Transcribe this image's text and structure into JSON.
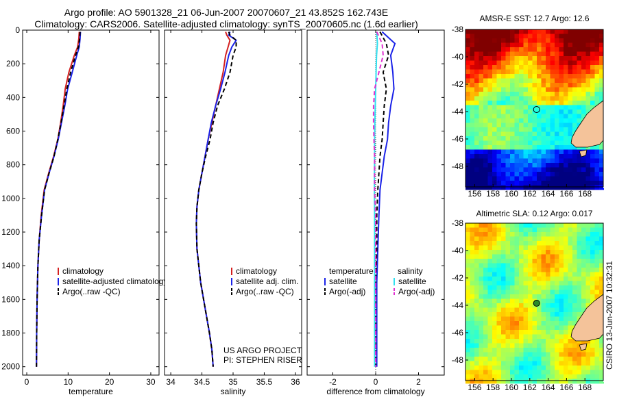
{
  "header": {
    "title1": "Argo profile: AO 5901328_21 06-Jun-2007 20070607_21 43.852S 162.743E",
    "title2": "Climatology: CARS2006. Satellite-adjusted climatology: synTS_20070605.nc (1.6d earlier)"
  },
  "side_label": "CSIRO 13-Jun-2007 10:32:31",
  "colors": {
    "climatology": "#d42020",
    "satellite": "#1a22e8",
    "argo": "#000000",
    "sal_sat": "#30e0f0",
    "sal_argo": "#e030d0"
  },
  "chart_data": [
    {
      "type": "line",
      "id": "temperature",
      "xlabel": "temperature",
      "ylabel": "",
      "xlim": [
        -1,
        32
      ],
      "ylim": [
        0,
        2050
      ],
      "y_reversed": true,
      "xticks": [
        0,
        10,
        20,
        30
      ],
      "yticks": [
        0,
        200,
        400,
        600,
        800,
        1000,
        1200,
        1400,
        1600,
        1800,
        2000
      ],
      "legend": [
        "climatology",
        "satellite-adjusted climatology",
        "Argo(..raw -QC)"
      ],
      "series": [
        {
          "name": "climatology",
          "color": "#d42020",
          "dash": false,
          "x": [
            12.7,
            12.6,
            12.3,
            11.5,
            10.2,
            9.3,
            8.8,
            8.2,
            7.5,
            6.5,
            5.3,
            4.2,
            3.5,
            3.0,
            2.7,
            2.5,
            2.4,
            2.35
          ],
          "y": [
            10,
            50,
            100,
            150,
            250,
            350,
            450,
            550,
            650,
            750,
            850,
            950,
            1100,
            1250,
            1400,
            1600,
            1800,
            2000
          ]
        },
        {
          "name": "satellite-adjusted climatology",
          "color": "#1a22e8",
          "dash": false,
          "x": [
            13.0,
            12.9,
            12.7,
            12.1,
            11.0,
            9.9,
            9.2,
            8.4,
            7.6,
            6.6,
            5.4,
            4.3,
            3.6,
            3.0,
            2.7,
            2.5,
            2.4,
            2.35
          ],
          "y": [
            10,
            50,
            100,
            150,
            250,
            350,
            450,
            550,
            650,
            750,
            850,
            950,
            1100,
            1250,
            1400,
            1600,
            1800,
            2000
          ]
        },
        {
          "name": "Argo(..raw -QC)",
          "color": "#000000",
          "dash": true,
          "x": [
            12.9,
            12.8,
            12.5,
            11.8,
            10.6,
            9.7,
            9.0,
            8.3,
            7.5,
            6.6,
            5.4,
            4.3,
            3.6,
            3.0,
            2.7,
            2.5,
            2.4,
            2.35
          ],
          "y": [
            10,
            50,
            100,
            150,
            250,
            350,
            450,
            550,
            650,
            750,
            850,
            950,
            1100,
            1250,
            1400,
            1600,
            1800,
            2000
          ]
        }
      ]
    },
    {
      "type": "line",
      "id": "salinity",
      "xlabel": "salinity",
      "ylabel": "",
      "xlim": [
        33.9,
        36.1
      ],
      "ylim": [
        0,
        2050
      ],
      "y_reversed": true,
      "xticks": [
        34,
        34.5,
        35,
        35.5,
        36
      ],
      "legend": [
        "climatology",
        "satellite adj. clim.",
        "Argo(..raw -QC)"
      ],
      "annotation": [
        "US ARGO PROJECT",
        "PI: STEPHEN RISER"
      ],
      "series": [
        {
          "name": "climatology",
          "color": "#d42020",
          "dash": false,
          "x": [
            34.88,
            34.9,
            34.95,
            34.92,
            34.88,
            34.84,
            34.78,
            34.72,
            34.66,
            34.6,
            34.55,
            34.5,
            34.45,
            34.42,
            34.41,
            34.42,
            34.48,
            34.55,
            34.62,
            34.66,
            34.68
          ],
          "y": [
            10,
            30,
            60,
            100,
            150,
            250,
            350,
            450,
            550,
            650,
            750,
            850,
            950,
            1050,
            1150,
            1300,
            1500,
            1650,
            1800,
            1900,
            2000
          ]
        },
        {
          "name": "satellite adj. clim.",
          "color": "#1a22e8",
          "dash": false,
          "x": [
            34.95,
            34.93,
            35.05,
            34.98,
            34.93,
            34.87,
            34.8,
            34.72,
            34.65,
            34.6,
            34.55,
            34.5,
            34.45,
            34.42,
            34.41,
            34.42,
            34.48,
            34.55,
            34.62,
            34.66,
            34.68
          ],
          "y": [
            10,
            30,
            60,
            100,
            150,
            250,
            350,
            450,
            550,
            650,
            750,
            850,
            950,
            1050,
            1150,
            1300,
            1500,
            1650,
            1800,
            1900,
            2000
          ]
        },
        {
          "name": "Argo(..raw -QC)",
          "color": "#000000",
          "dash": true,
          "x": [
            34.93,
            34.95,
            35.05,
            35.05,
            35.0,
            34.95,
            34.86,
            34.75,
            34.68,
            34.63,
            34.56,
            34.5,
            34.45,
            34.42,
            34.41,
            34.42,
            34.48,
            34.55,
            34.62,
            34.66,
            34.68
          ],
          "y": [
            10,
            30,
            60,
            100,
            150,
            250,
            350,
            450,
            550,
            650,
            750,
            850,
            950,
            1050,
            1150,
            1300,
            1500,
            1650,
            1800,
            1900,
            2000
          ]
        }
      ]
    },
    {
      "type": "line",
      "id": "difference",
      "xlabel": "difference from climatology",
      "ylabel": "",
      "xlim": [
        -3.2,
        3.2
      ],
      "ylim": [
        0,
        2050
      ],
      "y_reversed": true,
      "xticks": [
        -2,
        0,
        2
      ],
      "legend_left_title": "temperature",
      "legend_right_title": "salinity",
      "legend_left": [
        "satellite",
        "Argo(-adj)"
      ],
      "legend_right": [
        "satellite",
        "Argo(-adj)"
      ],
      "series": [
        {
          "name": "temperature satellite",
          "color": "#1a22e8",
          "dash": false,
          "x": [
            0.3,
            0.9,
            0.7,
            0.8,
            0.85,
            0.7,
            0.6,
            0.55,
            0.4,
            0.3,
            0.2,
            0.15,
            0.1,
            0.05,
            0.05,
            0.05,
            0.05
          ],
          "y": [
            10,
            80,
            150,
            250,
            350,
            450,
            550,
            650,
            750,
            850,
            950,
            1100,
            1300,
            1500,
            1700,
            1900,
            2000
          ]
        },
        {
          "name": "temperature Argo(-adj)",
          "color": "#000000",
          "dash": true,
          "x": [
            0.2,
            0.5,
            0.6,
            0.35,
            0.5,
            0.4,
            0.35,
            0.3,
            0.2,
            0.15,
            0.1,
            0.05,
            0.05,
            0.0,
            0.0,
            0.0,
            0.0
          ],
          "y": [
            10,
            80,
            150,
            250,
            350,
            450,
            550,
            650,
            750,
            850,
            950,
            1100,
            1300,
            1500,
            1700,
            1900,
            2000
          ]
        },
        {
          "name": "salinity satellite",
          "color": "#30e0f0",
          "dash": false,
          "x": [
            0.05,
            0.08,
            0.04,
            0.02,
            0.0,
            -0.02,
            -0.04,
            -0.05,
            -0.05,
            -0.06,
            -0.06,
            -0.05,
            -0.05,
            -0.05,
            -0.05,
            -0.05,
            -0.05
          ],
          "y": [
            10,
            80,
            150,
            250,
            350,
            450,
            550,
            650,
            750,
            850,
            950,
            1100,
            1300,
            1500,
            1700,
            1900,
            2000
          ]
        },
        {
          "name": "salinity Argo(-adj)",
          "color": "#e030d0",
          "dash": true,
          "x": [
            0.05,
            0.3,
            0.35,
            0.15,
            -0.05,
            -0.1,
            -0.1,
            -0.08,
            -0.05,
            -0.05,
            -0.05,
            0.0,
            0.0,
            0.0,
            0.0,
            0.0,
            0.0
          ],
          "y": [
            10,
            80,
            150,
            250,
            350,
            450,
            550,
            650,
            750,
            850,
            950,
            1100,
            1300,
            1500,
            1700,
            1900,
            2000
          ]
        }
      ]
    },
    {
      "type": "heatmap",
      "id": "sst-map",
      "title": "AMSR-E SST: 12.7 Argo: 12.6",
      "xlim": [
        155,
        170
      ],
      "ylim": [
        -49.5,
        -38
      ],
      "xticks": [
        156,
        158,
        160,
        162,
        164,
        166,
        168
      ],
      "yticks": [
        -38,
        -40,
        -42,
        -44,
        -46,
        -48
      ],
      "profile_marker": {
        "lon": 162.74,
        "lat": -43.85
      }
    },
    {
      "type": "heatmap",
      "id": "sla-map",
      "title": "Altimetric SLA: 0.12 Argo: 0.017",
      "xlim": [
        155,
        170
      ],
      "ylim": [
        -49.5,
        -38
      ],
      "xticks": [
        156,
        158,
        160,
        162,
        164,
        166,
        168
      ],
      "yticks": [
        -38,
        -40,
        -42,
        -44,
        -46,
        -48
      ],
      "profile_marker": {
        "lon": 162.74,
        "lat": -43.85
      }
    }
  ]
}
